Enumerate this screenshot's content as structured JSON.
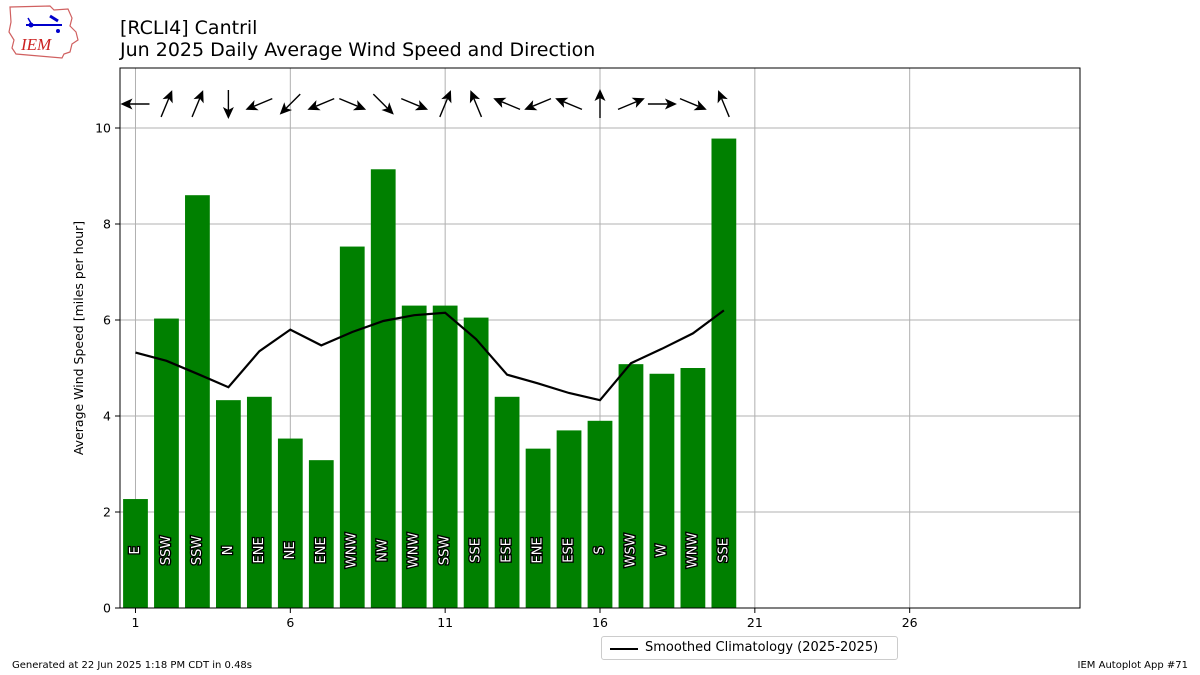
{
  "header": {
    "title_line1": "[RCLI4] Cantril",
    "title_line2": "Jun 2025 Daily Average Wind Speed and Direction",
    "logo_text": "IEM"
  },
  "footer": {
    "generated": "Generated at 22 Jun 2025 1:18 PM CDT in 0.48s",
    "app": "IEM Autoplot App #71"
  },
  "legend": {
    "label": "Smoothed Climatology (2025-2025)"
  },
  "colors": {
    "bar": "#008000",
    "line": "#000000",
    "grid": "#b0b0b0"
  },
  "chart_data": {
    "type": "bar",
    "ylabel": "Average Wind Speed [miles per hour]",
    "xlim": [
      0.5,
      31.5
    ],
    "ylim": [
      0,
      11.25
    ],
    "xticks": [
      1,
      6,
      11,
      16,
      21,
      26
    ],
    "yticks": [
      0,
      2,
      4,
      6,
      8,
      10
    ],
    "grid": true,
    "legend_position": "below",
    "days": [
      1,
      2,
      3,
      4,
      5,
      6,
      7,
      8,
      9,
      10,
      11,
      12,
      13,
      14,
      15,
      16,
      17,
      18,
      19,
      20
    ],
    "speed": [
      2.27,
      6.03,
      8.6,
      4.33,
      4.4,
      3.53,
      3.08,
      7.53,
      9.14,
      6.3,
      6.3,
      6.05,
      4.4,
      3.32,
      3.7,
      3.9,
      5.08,
      4.88,
      5.0,
      9.78
    ],
    "direction": [
      "E",
      "SSW",
      "SSW",
      "N",
      "ENE",
      "NE",
      "ENE",
      "WNW",
      "NW",
      "WNW",
      "SSW",
      "SSE",
      "ESE",
      "ENE",
      "ESE",
      "S",
      "WSW",
      "W",
      "WNW",
      "SSE"
    ],
    "climatology": [
      5.32,
      5.15,
      4.88,
      4.6,
      5.35,
      5.8,
      5.47,
      5.75,
      5.98,
      6.1,
      6.15,
      5.6,
      4.86,
      4.68,
      4.48,
      4.33,
      5.1,
      5.4,
      5.72,
      6.2
    ]
  }
}
